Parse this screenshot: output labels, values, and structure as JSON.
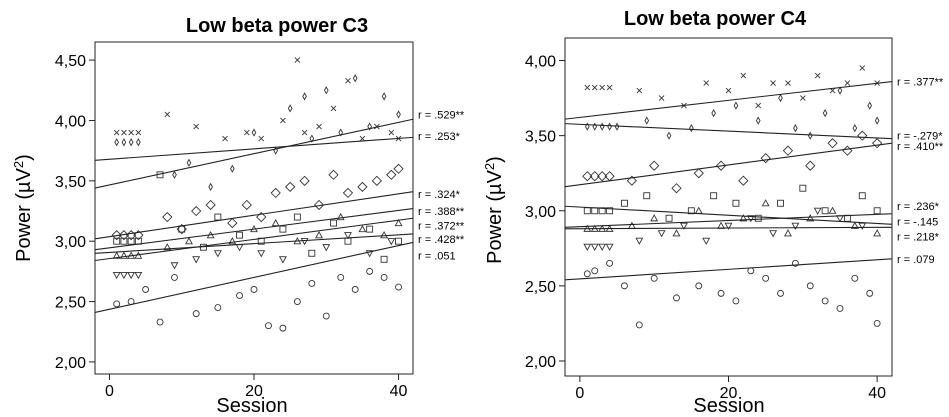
{
  "chart_data": [
    {
      "type": "scatter",
      "title": "Low beta power C3",
      "xlabel": "Session",
      "ylabel": "Power (µV²)",
      "ylabel_main": "Power (µV",
      "ylabel_sup": "2",
      "ylabel_close": ")",
      "xlim": [
        -2,
        42
      ],
      "ylim": [
        1.9,
        4.65
      ],
      "xticks": [
        0,
        20,
        40
      ],
      "yticks": [
        2.0,
        2.5,
        3.0,
        3.5,
        4.0,
        4.5
      ],
      "xtick_labels": [
        "0",
        "20",
        "40"
      ],
      "ytick_labels": [
        "2,00",
        "2,50",
        "3,00",
        "3,50",
        "4,00",
        "4,50"
      ],
      "series": [
        {
          "marker": "x",
          "x": [
            1,
            2,
            3,
            4,
            8,
            12,
            16,
            19,
            21,
            24,
            26,
            27,
            29,
            31,
            33,
            35,
            37,
            39,
            40
          ],
          "y": [
            3.9,
            3.9,
            3.9,
            3.9,
            4.05,
            3.95,
            3.85,
            3.9,
            3.85,
            4.0,
            4.5,
            3.9,
            3.95,
            4.1,
            4.33,
            3.85,
            3.95,
            3.9,
            3.85
          ]
        },
        {
          "marker": "diamond",
          "x": [
            1,
            2,
            3,
            4,
            9,
            11,
            14,
            17,
            20,
            23,
            25,
            27,
            28,
            30,
            32,
            34,
            36,
            38,
            40
          ],
          "y": [
            3.82,
            3.82,
            3.82,
            3.82,
            3.55,
            3.65,
            3.45,
            3.6,
            3.9,
            3.75,
            4.1,
            4.2,
            3.85,
            4.25,
            3.9,
            4.35,
            3.95,
            4.2,
            4.05
          ]
        },
        {
          "marker": "big-diamond",
          "x": [
            1,
            2,
            3,
            4,
            8,
            10,
            12,
            14,
            17,
            19,
            21,
            23,
            25,
            27,
            29,
            31,
            33,
            35,
            37,
            39,
            40
          ],
          "y": [
            3.05,
            3.05,
            3.05,
            3.05,
            3.2,
            3.1,
            3.25,
            3.3,
            3.15,
            3.3,
            3.2,
            3.4,
            3.45,
            3.5,
            3.3,
            3.55,
            3.4,
            3.45,
            3.5,
            3.55,
            3.6
          ]
        },
        {
          "marker": "square",
          "x": [
            1,
            2,
            3,
            4,
            7,
            10,
            13,
            15,
            18,
            21,
            24,
            26,
            28,
            31,
            33,
            36,
            38,
            40
          ],
          "y": [
            3.0,
            3.0,
            3.0,
            3.0,
            3.55,
            3.1,
            2.95,
            3.2,
            3.05,
            3.0,
            3.1,
            3.2,
            2.9,
            3.15,
            3.0,
            3.1,
            2.85,
            3.0
          ]
        },
        {
          "marker": "triangle-up",
          "x": [
            1,
            2,
            3,
            4,
            8,
            11,
            14,
            17,
            20,
            23,
            26,
            29,
            32,
            35,
            38,
            40
          ],
          "y": [
            2.88,
            2.88,
            2.88,
            2.88,
            2.95,
            3.0,
            3.05,
            3.0,
            3.1,
            3.15,
            3.0,
            3.05,
            3.2,
            3.1,
            3.05,
            3.15
          ]
        },
        {
          "marker": "triangle-down",
          "x": [
            1,
            2,
            3,
            4,
            9,
            12,
            15,
            18,
            21,
            24,
            27,
            30,
            33,
            36,
            39
          ],
          "y": [
            2.72,
            2.72,
            2.72,
            2.72,
            2.8,
            2.85,
            2.9,
            2.95,
            2.9,
            2.85,
            3.0,
            2.95,
            3.05,
            2.9,
            3.0
          ]
        },
        {
          "marker": "circle",
          "x": [
            1,
            3,
            5,
            7,
            9,
            12,
            15,
            18,
            20,
            22,
            24,
            26,
            28,
            30,
            32,
            34,
            36,
            38,
            40
          ],
          "y": [
            2.48,
            2.5,
            2.6,
            2.33,
            2.7,
            2.4,
            2.45,
            2.55,
            2.6,
            2.3,
            2.28,
            2.5,
            2.65,
            2.38,
            2.7,
            2.6,
            2.75,
            2.7,
            2.62
          ]
        }
      ],
      "fit_lines": [
        {
          "label": "r = .529**",
          "y0": 3.44,
          "y1": 4.01
        },
        {
          "label": "r = .253*",
          "y0": 3.67,
          "y1": 3.86
        },
        {
          "label": "r = .324*",
          "y0": 3.02,
          "y1": 3.41
        },
        {
          "label": "r = .388**",
          "y0": 2.93,
          "y1": 3.27
        },
        {
          "label": "r = .372**",
          "y0": 2.84,
          "y1": 3.19
        },
        {
          "label": "r = .428**",
          "y0": 2.9,
          "y1": 3.06
        },
        {
          "label": "r = .051",
          "y0": 2.41,
          "y1": 2.99
        }
      ],
      "fit_label_y": [
        4.05,
        3.87,
        3.39,
        3.25,
        3.13,
        3.02,
        2.88
      ]
    },
    {
      "type": "scatter",
      "title": "Low beta power C4",
      "xlabel": "Session",
      "ylabel": "Power (µV²)",
      "ylabel_main": "Power (µV",
      "ylabel_sup": "2",
      "ylabel_close": ")",
      "xlim": [
        -2,
        42
      ],
      "ylim": [
        1.9,
        4.15
      ],
      "xticks": [
        0,
        20,
        40
      ],
      "yticks": [
        2.0,
        2.5,
        3.0,
        3.5,
        4.0
      ],
      "xtick_labels": [
        "0",
        "20",
        "40"
      ],
      "ytick_labels": [
        "2,00",
        "2,50",
        "3,00",
        "3,50",
        "4,00"
      ],
      "series": [
        {
          "marker": "x",
          "x": [
            1,
            2,
            3,
            4,
            8,
            11,
            14,
            17,
            20,
            22,
            24,
            26,
            28,
            30,
            32,
            34,
            36,
            38,
            40
          ],
          "y": [
            3.82,
            3.82,
            3.82,
            3.82,
            3.8,
            3.75,
            3.7,
            3.85,
            3.8,
            3.9,
            3.7,
            3.85,
            3.85,
            3.75,
            3.9,
            3.8,
            3.85,
            3.95,
            3.85
          ]
        },
        {
          "marker": "diamond",
          "x": [
            1,
            2,
            3,
            4,
            5,
            9,
            12,
            15,
            18,
            21,
            24,
            27,
            29,
            31,
            33,
            35,
            37,
            39,
            40
          ],
          "y": [
            3.56,
            3.56,
            3.56,
            3.56,
            3.56,
            3.6,
            3.5,
            3.55,
            3.65,
            3.7,
            3.6,
            3.75,
            3.55,
            3.5,
            3.65,
            3.8,
            3.55,
            3.7,
            3.6
          ]
        },
        {
          "marker": "big-diamond",
          "x": [
            1,
            2,
            3,
            4,
            7,
            10,
            13,
            16,
            19,
            22,
            25,
            28,
            31,
            34,
            36,
            38,
            40
          ],
          "y": [
            3.23,
            3.23,
            3.23,
            3.23,
            3.2,
            3.3,
            3.15,
            3.25,
            3.3,
            3.2,
            3.35,
            3.4,
            3.3,
            3.45,
            3.4,
            3.5,
            3.45
          ]
        },
        {
          "marker": "square",
          "x": [
            1,
            2,
            3,
            4,
            6,
            9,
            12,
            15,
            18,
            21,
            24,
            27,
            30,
            33,
            36,
            38,
            40
          ],
          "y": [
            3.0,
            3.0,
            3.0,
            3.0,
            3.05,
            3.1,
            2.95,
            3.0,
            3.1,
            3.05,
            2.95,
            3.05,
            3.15,
            3.0,
            2.95,
            3.1,
            3.0
          ]
        },
        {
          "marker": "triangle-up",
          "x": [
            1,
            2,
            3,
            4,
            7,
            10,
            13,
            16,
            19,
            22,
            25,
            28,
            31,
            34,
            37,
            40
          ],
          "y": [
            2.88,
            2.88,
            2.88,
            2.88,
            2.9,
            2.95,
            2.85,
            3.0,
            2.9,
            2.95,
            3.05,
            2.85,
            2.95,
            3.0,
            2.9,
            2.85
          ]
        },
        {
          "marker": "triangle-down",
          "x": [
            1,
            2,
            3,
            4,
            8,
            11,
            14,
            17,
            20,
            23,
            26,
            29,
            32,
            35,
            38
          ],
          "y": [
            2.76,
            2.76,
            2.76,
            2.76,
            2.8,
            2.85,
            2.9,
            2.8,
            2.9,
            2.95,
            2.85,
            2.9,
            3.0,
            2.95,
            2.9
          ]
        },
        {
          "marker": "circle",
          "x": [
            1,
            2,
            4,
            6,
            8,
            10,
            13,
            16,
            19,
            21,
            23,
            25,
            27,
            29,
            31,
            33,
            35,
            37,
            39,
            40
          ],
          "y": [
            2.58,
            2.6,
            2.65,
            2.5,
            2.24,
            2.55,
            2.42,
            2.5,
            2.45,
            2.4,
            2.6,
            2.55,
            2.45,
            2.65,
            2.5,
            2.4,
            2.35,
            2.55,
            2.45,
            2.25
          ]
        }
      ],
      "fit_lines": [
        {
          "label": "r = .377**",
          "y0": 3.61,
          "y1": 3.86
        },
        {
          "label": "r = -.279*",
          "y0": 3.58,
          "y1": 3.48
        },
        {
          "label": "r = .410**",
          "y0": 3.16,
          "y1": 3.45
        },
        {
          "label": "r = .236*",
          "y0": 2.89,
          "y1": 2.98
        },
        {
          "label": "r = -.145",
          "y0": 3.03,
          "y1": 2.91
        },
        {
          "label": "r = .218*",
          "y0": 2.88,
          "y1": 2.89
        },
        {
          "label": "r = .079",
          "y0": 2.54,
          "y1": 2.68
        }
      ],
      "fit_label_y": [
        3.86,
        3.5,
        3.43,
        3.03,
        2.93,
        2.83,
        2.68
      ]
    }
  ]
}
